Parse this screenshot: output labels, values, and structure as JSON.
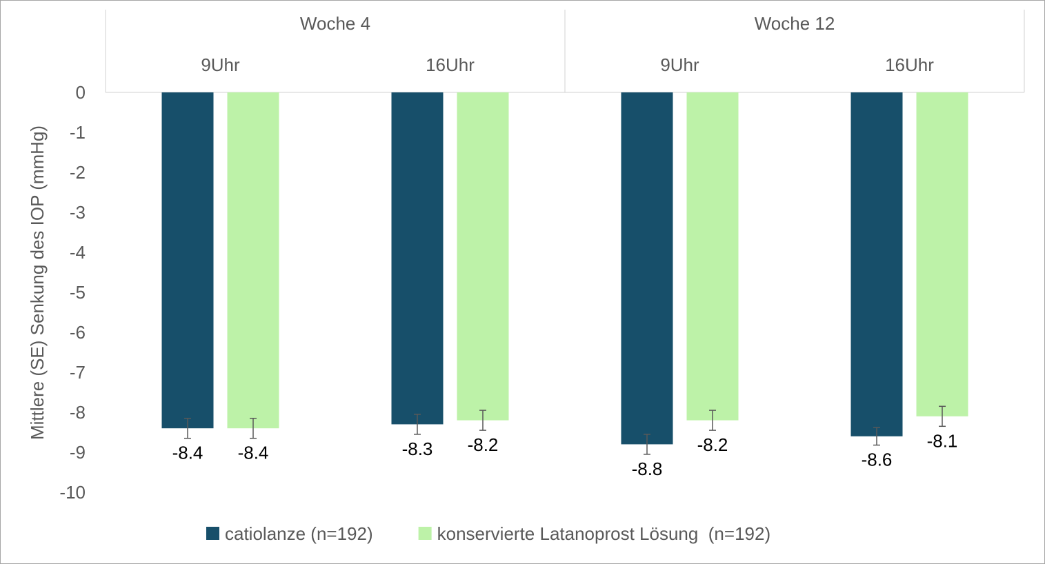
{
  "chart_data": {
    "type": "bar",
    "title": "",
    "ylabel": "Mittlere (SE) Senkung des IOP (mmHg)",
    "xlabel": "",
    "ylim": [
      -10,
      0
    ],
    "yticks": [
      "0",
      "-1",
      "-2",
      "-3",
      "-4",
      "-5",
      "-6",
      "-7",
      "-8",
      "-9",
      "-10"
    ],
    "groups": [
      {
        "label": "Woche 4"
      },
      {
        "label": "Woche 12"
      }
    ],
    "categories": [
      "9Uhr",
      "16Uhr",
      "9Uhr",
      "16Uhr"
    ],
    "series": [
      {
        "name": "catiolanze (n=192)",
        "color": "#174f6a",
        "values": [
          -8.4,
          -8.3,
          -8.8,
          -8.6
        ],
        "labels": [
          "-8.4",
          "-8.3",
          "-8.8",
          "-8.6"
        ],
        "error": [
          0.25,
          0.25,
          0.25,
          0.22
        ]
      },
      {
        "name": "konservierte Latanoprost Lösung  (n=192)",
        "color": "#bdf2a8",
        "values": [
          -8.4,
          -8.2,
          -8.2,
          -8.1
        ],
        "labels": [
          "-8.4",
          "-8.2",
          "-8.2",
          "-8.1"
        ],
        "error": [
          0.25,
          0.25,
          0.25,
          0.25
        ]
      }
    ],
    "grid": false,
    "legend_position": "bottom"
  }
}
